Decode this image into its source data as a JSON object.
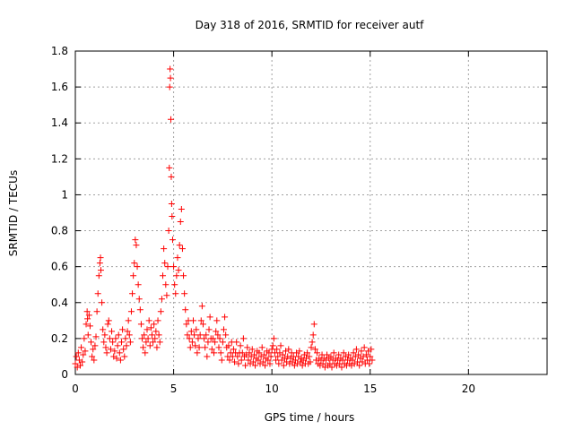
{
  "chart_data": {
    "type": "scatter",
    "title": "Day 318 of 2016, SRMTID for receiver autf",
    "xlabel": "GPS time / hours",
    "ylabel": "SRMTID / TECUs",
    "xlim": [
      0,
      24
    ],
    "ylim": [
      0,
      1.8
    ],
    "xticks": [
      0,
      5,
      10,
      15,
      20
    ],
    "yticks": [
      0,
      0.2,
      0.4,
      0.6,
      0.8,
      1,
      1.2,
      1.4,
      1.6,
      1.8
    ],
    "grid": true,
    "marker": "+",
    "marker_color": "#ff0000",
    "series": [
      {
        "name": "SRMTID",
        "points": [
          [
            0.0,
            0.06
          ],
          [
            0.05,
            0.1
          ],
          [
            0.1,
            0.04
          ],
          [
            0.15,
            0.12
          ],
          [
            0.2,
            0.08
          ],
          [
            0.25,
            0.05
          ],
          [
            0.3,
            0.15
          ],
          [
            0.35,
            0.07
          ],
          [
            0.4,
            0.11
          ],
          [
            0.45,
            0.2
          ],
          [
            0.5,
            0.13
          ],
          [
            0.55,
            0.28
          ],
          [
            0.6,
            0.35
          ],
          [
            0.62,
            0.31
          ],
          [
            0.65,
            0.22
          ],
          [
            0.7,
            0.33
          ],
          [
            0.75,
            0.27
          ],
          [
            0.8,
            0.18
          ],
          [
            0.85,
            0.1
          ],
          [
            0.9,
            0.14
          ],
          [
            0.95,
            0.08
          ],
          [
            1.0,
            0.16
          ],
          [
            1.05,
            0.21
          ],
          [
            1.1,
            0.35
          ],
          [
            1.15,
            0.45
          ],
          [
            1.2,
            0.55
          ],
          [
            1.25,
            0.62
          ],
          [
            1.28,
            0.65
          ],
          [
            1.3,
            0.58
          ],
          [
            1.35,
            0.4
          ],
          [
            1.4,
            0.25
          ],
          [
            1.45,
            0.18
          ],
          [
            1.5,
            0.22
          ],
          [
            1.55,
            0.15
          ],
          [
            1.6,
            0.12
          ],
          [
            1.65,
            0.28
          ],
          [
            1.7,
            0.3
          ],
          [
            1.75,
            0.2
          ],
          [
            1.8,
            0.14
          ],
          [
            1.85,
            0.24
          ],
          [
            1.9,
            0.18
          ],
          [
            1.95,
            0.1
          ],
          [
            2.0,
            0.13
          ],
          [
            2.05,
            0.2
          ],
          [
            2.1,
            0.09
          ],
          [
            2.15,
            0.16
          ],
          [
            2.2,
            0.22
          ],
          [
            2.25,
            0.12
          ],
          [
            2.3,
            0.08
          ],
          [
            2.35,
            0.18
          ],
          [
            2.4,
            0.25
          ],
          [
            2.45,
            0.14
          ],
          [
            2.5,
            0.1
          ],
          [
            2.55,
            0.2
          ],
          [
            2.6,
            0.16
          ],
          [
            2.65,
            0.24
          ],
          [
            2.7,
            0.3
          ],
          [
            2.75,
            0.22
          ],
          [
            2.8,
            0.18
          ],
          [
            2.85,
            0.35
          ],
          [
            2.9,
            0.45
          ],
          [
            2.95,
            0.55
          ],
          [
            3.0,
            0.62
          ],
          [
            3.05,
            0.75
          ],
          [
            3.1,
            0.72
          ],
          [
            3.15,
            0.6
          ],
          [
            3.2,
            0.5
          ],
          [
            3.25,
            0.42
          ],
          [
            3.3,
            0.36
          ],
          [
            3.35,
            0.28
          ],
          [
            3.4,
            0.2
          ],
          [
            3.45,
            0.15
          ],
          [
            3.5,
            0.22
          ],
          [
            3.55,
            0.12
          ],
          [
            3.6,
            0.18
          ],
          [
            3.65,
            0.25
          ],
          [
            3.7,
            0.2
          ],
          [
            3.75,
            0.3
          ],
          [
            3.8,
            0.16
          ],
          [
            3.85,
            0.26
          ],
          [
            3.9,
            0.22
          ],
          [
            3.95,
            0.18
          ],
          [
            4.0,
            0.28
          ],
          [
            4.05,
            0.2
          ],
          [
            4.1,
            0.24
          ],
          [
            4.15,
            0.15
          ],
          [
            4.2,
            0.3
          ],
          [
            4.25,
            0.22
          ],
          [
            4.3,
            0.18
          ],
          [
            4.35,
            0.35
          ],
          [
            4.4,
            0.42
          ],
          [
            4.45,
            0.55
          ],
          [
            4.5,
            0.7
          ],
          [
            4.55,
            0.62
          ],
          [
            4.6,
            0.5
          ],
          [
            4.65,
            0.44
          ],
          [
            4.7,
            0.6
          ],
          [
            4.75,
            0.8
          ],
          [
            4.78,
            1.15
          ],
          [
            4.8,
            1.6
          ],
          [
            4.82,
            1.7
          ],
          [
            4.84,
            1.65
          ],
          [
            4.86,
            1.42
          ],
          [
            4.88,
            1.1
          ],
          [
            4.9,
            0.95
          ],
          [
            4.92,
            0.88
          ],
          [
            4.95,
            0.75
          ],
          [
            5.0,
            0.6
          ],
          [
            5.05,
            0.5
          ],
          [
            5.1,
            0.45
          ],
          [
            5.15,
            0.55
          ],
          [
            5.2,
            0.65
          ],
          [
            5.25,
            0.58
          ],
          [
            5.3,
            0.72
          ],
          [
            5.35,
            0.85
          ],
          [
            5.4,
            0.92
          ],
          [
            5.45,
            0.7
          ],
          [
            5.5,
            0.55
          ],
          [
            5.55,
            0.45
          ],
          [
            5.6,
            0.36
          ],
          [
            5.65,
            0.28
          ],
          [
            5.7,
            0.22
          ],
          [
            5.75,
            0.3
          ],
          [
            5.8,
            0.2
          ],
          [
            5.85,
            0.15
          ],
          [
            5.9,
            0.24
          ],
          [
            5.95,
            0.18
          ],
          [
            6.0,
            0.3
          ],
          [
            6.05,
            0.22
          ],
          [
            6.1,
            0.16
          ],
          [
            6.15,
            0.25
          ],
          [
            6.2,
            0.12
          ],
          [
            6.25,
            0.2
          ],
          [
            6.3,
            0.15
          ],
          [
            6.35,
            0.22
          ],
          [
            6.4,
            0.3
          ],
          [
            6.45,
            0.38
          ],
          [
            6.5,
            0.28
          ],
          [
            6.55,
            0.2
          ],
          [
            6.6,
            0.15
          ],
          [
            6.65,
            0.22
          ],
          [
            6.7,
            0.1
          ],
          [
            6.75,
            0.18
          ],
          [
            6.8,
            0.25
          ],
          [
            6.85,
            0.32
          ],
          [
            6.9,
            0.2
          ],
          [
            6.95,
            0.14
          ],
          [
            7.0,
            0.2
          ],
          [
            7.05,
            0.12
          ],
          [
            7.1,
            0.18
          ],
          [
            7.15,
            0.24
          ],
          [
            7.2,
            0.3
          ],
          [
            7.25,
            0.22
          ],
          [
            7.3,
            0.15
          ],
          [
            7.35,
            0.2
          ],
          [
            7.4,
            0.12
          ],
          [
            7.45,
            0.08
          ],
          [
            7.5,
            0.18
          ],
          [
            7.55,
            0.25
          ],
          [
            7.6,
            0.32
          ],
          [
            7.65,
            0.22
          ],
          [
            7.7,
            0.15
          ],
          [
            7.75,
            0.1
          ],
          [
            7.8,
            0.16
          ],
          [
            7.85,
            0.08
          ],
          [
            7.9,
            0.12
          ],
          [
            7.95,
            0.18
          ],
          [
            8.0,
            0.1
          ],
          [
            8.05,
            0.14
          ],
          [
            8.1,
            0.07
          ],
          [
            8.15,
            0.12
          ],
          [
            8.2,
            0.18
          ],
          [
            8.25,
            0.1
          ],
          [
            8.3,
            0.06
          ],
          [
            8.35,
            0.12
          ],
          [
            8.4,
            0.16
          ],
          [
            8.45,
            0.08
          ],
          [
            8.5,
            0.12
          ],
          [
            8.55,
            0.2
          ],
          [
            8.6,
            0.1
          ],
          [
            8.65,
            0.05
          ],
          [
            8.7,
            0.11
          ],
          [
            8.75,
            0.15
          ],
          [
            8.8,
            0.08
          ],
          [
            8.85,
            0.12
          ],
          [
            8.9,
            0.06
          ],
          [
            8.95,
            0.1
          ],
          [
            9.0,
            0.14
          ],
          [
            9.05,
            0.07
          ],
          [
            9.1,
            0.11
          ],
          [
            9.15,
            0.05
          ],
          [
            9.2,
            0.09
          ],
          [
            9.25,
            0.13
          ],
          [
            9.3,
            0.08
          ],
          [
            9.35,
            0.12
          ],
          [
            9.4,
            0.06
          ],
          [
            9.45,
            0.1
          ],
          [
            9.5,
            0.15
          ],
          [
            9.55,
            0.07
          ],
          [
            9.6,
            0.11
          ],
          [
            9.65,
            0.05
          ],
          [
            9.7,
            0.09
          ],
          [
            9.75,
            0.13
          ],
          [
            9.8,
            0.08
          ],
          [
            9.85,
            0.12
          ],
          [
            9.9,
            0.06
          ],
          [
            9.95,
            0.1
          ],
          [
            10.0,
            0.14
          ],
          [
            10.05,
            0.16
          ],
          [
            10.1,
            0.2
          ],
          [
            10.15,
            0.12
          ],
          [
            10.2,
            0.08
          ],
          [
            10.25,
            0.14
          ],
          [
            10.3,
            0.1
          ],
          [
            10.35,
            0.06
          ],
          [
            10.4,
            0.12
          ],
          [
            10.45,
            0.16
          ],
          [
            10.5,
            0.08
          ],
          [
            10.55,
            0.11
          ],
          [
            10.6,
            0.05
          ],
          [
            10.65,
            0.09
          ],
          [
            10.7,
            0.13
          ],
          [
            10.75,
            0.07
          ],
          [
            10.8,
            0.1
          ],
          [
            10.85,
            0.14
          ],
          [
            10.9,
            0.06
          ],
          [
            10.95,
            0.09
          ],
          [
            11.0,
            0.12
          ],
          [
            11.05,
            0.07
          ],
          [
            11.1,
            0.1
          ],
          [
            11.15,
            0.05
          ],
          [
            11.2,
            0.08
          ],
          [
            11.25,
            0.12
          ],
          [
            11.3,
            0.06
          ],
          [
            11.35,
            0.1
          ],
          [
            11.4,
            0.13
          ],
          [
            11.45,
            0.07
          ],
          [
            11.5,
            0.09
          ],
          [
            11.55,
            0.05
          ],
          [
            11.6,
            0.08
          ],
          [
            11.65,
            0.11
          ],
          [
            11.7,
            0.06
          ],
          [
            11.75,
            0.09
          ],
          [
            11.8,
            0.12
          ],
          [
            11.85,
            0.06
          ],
          [
            11.9,
            0.1
          ],
          [
            11.95,
            0.07
          ],
          [
            12.0,
            0.15
          ],
          [
            12.05,
            0.18
          ],
          [
            12.1,
            0.22
          ],
          [
            12.15,
            0.28
          ],
          [
            12.2,
            0.14
          ],
          [
            12.25,
            0.08
          ],
          [
            12.3,
            0.12
          ],
          [
            12.35,
            0.06
          ],
          [
            12.4,
            0.09
          ],
          [
            12.45,
            0.05
          ],
          [
            12.5,
            0.08
          ],
          [
            12.55,
            0.11
          ],
          [
            12.6,
            0.06
          ],
          [
            12.65,
            0.09
          ],
          [
            12.7,
            0.04
          ],
          [
            12.75,
            0.08
          ],
          [
            12.8,
            0.11
          ],
          [
            12.85,
            0.05
          ],
          [
            12.9,
            0.09
          ],
          [
            12.95,
            0.06
          ],
          [
            13.0,
            0.1
          ],
          [
            13.05,
            0.04
          ],
          [
            13.1,
            0.08
          ],
          [
            13.15,
            0.12
          ],
          [
            13.2,
            0.06
          ],
          [
            13.25,
            0.09
          ],
          [
            13.3,
            0.05
          ],
          [
            13.35,
            0.08
          ],
          [
            13.4,
            0.11
          ],
          [
            13.45,
            0.06
          ],
          [
            13.5,
            0.09
          ],
          [
            13.55,
            0.04
          ],
          [
            13.6,
            0.08
          ],
          [
            13.65,
            0.12
          ],
          [
            13.7,
            0.06
          ],
          [
            13.75,
            0.1
          ],
          [
            13.8,
            0.05
          ],
          [
            13.85,
            0.08
          ],
          [
            13.9,
            0.11
          ],
          [
            13.95,
            0.06
          ],
          [
            14.0,
            0.09
          ],
          [
            14.05,
            0.05
          ],
          [
            14.1,
            0.08
          ],
          [
            14.15,
            0.12
          ],
          [
            14.2,
            0.06
          ],
          [
            14.25,
            0.1
          ],
          [
            14.3,
            0.14
          ],
          [
            14.35,
            0.07
          ],
          [
            14.4,
            0.11
          ],
          [
            14.45,
            0.05
          ],
          [
            14.5,
            0.09
          ],
          [
            14.55,
            0.13
          ],
          [
            14.6,
            0.07
          ],
          [
            14.65,
            0.1
          ],
          [
            14.7,
            0.15
          ],
          [
            14.75,
            0.06
          ],
          [
            14.8,
            0.11
          ],
          [
            14.85,
            0.08
          ],
          [
            14.9,
            0.13
          ],
          [
            14.95,
            0.06
          ],
          [
            15.0,
            0.1
          ],
          [
            15.05,
            0.14
          ],
          [
            15.1,
            0.08
          ]
        ]
      }
    ]
  }
}
